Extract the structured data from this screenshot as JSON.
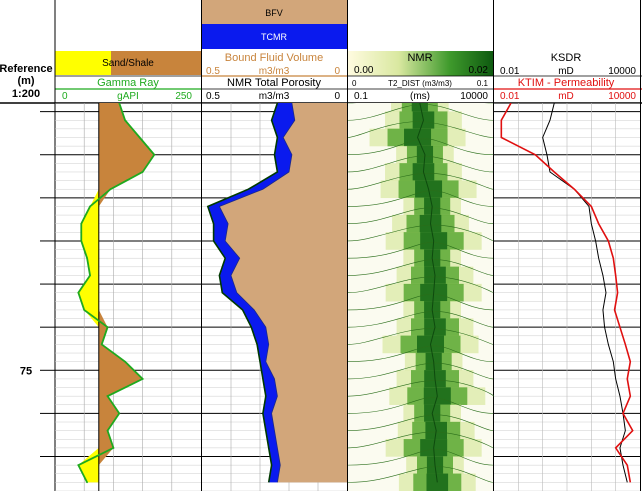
{
  "depth_track": {
    "title_line1": "Reference",
    "title_line2": "(m)",
    "scale": "1:200",
    "depth_label": "75",
    "depth_range_m": [
      68.8,
      77.8
    ]
  },
  "track1": {
    "fill_legend": {
      "left_label": "Sand/Shale",
      "left_color": "#ffff00",
      "right_color": "#c8843c"
    },
    "curve": {
      "name": "Gamma Ray",
      "unit": "gAPI",
      "min": "0",
      "max": "250",
      "color": "#1faa1f"
    }
  },
  "track2": {
    "legend_top": "BFV",
    "legend_mid": "TCMR",
    "bfv": {
      "name": "Bound Fluid Volume",
      "unit": "m3/m3",
      "min": "0.5",
      "max": "0",
      "color": "#d2a67a"
    },
    "tcmr": {
      "name": "NMR Total Porosity",
      "unit": "m3/m3",
      "min": "0.5",
      "max": "0",
      "color": "#0a1aee"
    }
  },
  "track3": {
    "title": "NMR",
    "scale_min": "0.00",
    "scale_max": "0.02",
    "dist": {
      "name": "T2_DIST (m3/m3)",
      "min": "0",
      "max": "0.1"
    },
    "axis": {
      "min": "0.1",
      "unit": "(ms)",
      "max": "10000"
    }
  },
  "track4": {
    "ksdr": {
      "name": "KSDR",
      "min": "0.01",
      "unit": "mD",
      "max": "10000",
      "color": "#000000"
    },
    "ktim": {
      "name": "KTIM - Permeability",
      "min": "0.01",
      "unit": "mD",
      "max": "10000",
      "color": "#e01010"
    }
  },
  "chart_data": {
    "type": "area",
    "depth_unit": "m",
    "depth": [
      68.8,
      69.2,
      69.6,
      70.0,
      70.4,
      70.8,
      71.2,
      71.6,
      72.0,
      72.4,
      72.8,
      73.2,
      73.6,
      74.0,
      74.4,
      74.8,
      75.2,
      75.6,
      76.0,
      76.4,
      76.8,
      77.2,
      77.6
    ],
    "series": [
      {
        "name": "Gamma Ray",
        "unit": "gAPI",
        "range": [
          0,
          250
        ],
        "values": [
          110,
          120,
          145,
          170,
          150,
          95,
          60,
          45,
          45,
          55,
          60,
          40,
          50,
          90,
          80,
          120,
          150,
          90,
          110,
          90,
          100,
          40,
          55
        ]
      },
      {
        "name": "Bound Fluid Volume",
        "unit": "m3/m3",
        "range": [
          0.5,
          0
        ],
        "values": [
          0.19,
          0.18,
          0.22,
          0.19,
          0.2,
          0.29,
          0.44,
          0.41,
          0.42,
          0.37,
          0.4,
          0.38,
          0.32,
          0.28,
          0.27,
          0.28,
          0.25,
          0.24,
          0.26,
          0.25,
          0.24,
          0.23,
          0.24
        ]
      },
      {
        "name": "NMR Total Porosity",
        "unit": "m3/m3",
        "range": [
          0.5,
          0
        ],
        "values": [
          0.24,
          0.26,
          0.24,
          0.25,
          0.24,
          0.34,
          0.48,
          0.46,
          0.46,
          0.42,
          0.44,
          0.43,
          0.36,
          0.33,
          0.31,
          0.3,
          0.29,
          0.28,
          0.29,
          0.28,
          0.27,
          0.26,
          0.27
        ]
      },
      {
        "name": "KSDR",
        "unit": "mD",
        "range": [
          0.01,
          10000
        ],
        "scale": "log",
        "values": [
          3,
          2,
          1,
          1.5,
          2,
          20,
          80,
          100,
          150,
          200,
          300,
          400,
          300,
          350,
          500,
          800,
          1000,
          1500,
          2000,
          2500,
          1500,
          2000,
          3000
        ]
      },
      {
        "name": "KTIM - Permeability",
        "unit": "mD",
        "range": [
          0.01,
          10000
        ],
        "scale": "log",
        "values": [
          0.05,
          0.02,
          0.02,
          0.5,
          3,
          20,
          100,
          200,
          500,
          800,
          1000,
          1200,
          900,
          1500,
          2500,
          4000,
          3000,
          4000,
          2000,
          5000,
          1000,
          3000,
          4000
        ]
      }
    ],
    "nmr_t2_peak_ms": [
      30,
      40,
      25,
      45,
      40,
      60,
      80,
      70,
      90,
      80,
      100,
      90,
      80,
      100,
      70,
      90,
      100,
      120,
      80,
      110,
      90,
      100,
      120
    ]
  }
}
